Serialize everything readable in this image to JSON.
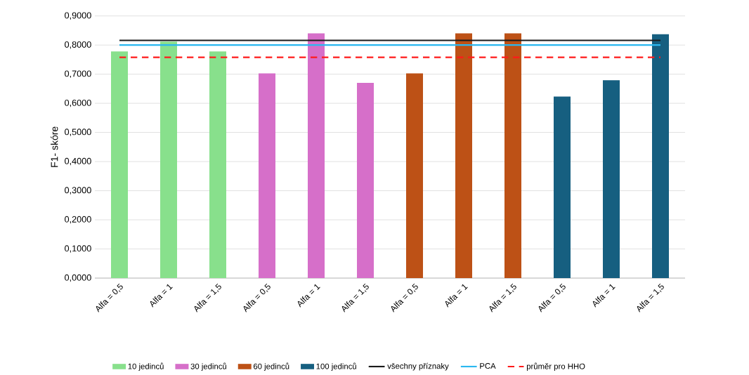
{
  "chart_data": {
    "type": "bar",
    "ylabel": "F1- skóre",
    "categories": [
      "Alfa = 0,5",
      "Alfa = 1",
      "Alfa = 1,5",
      "Alfa = 0,5",
      "Alfa = 1",
      "Alfa = 1,5",
      "Alfa = 0,5",
      "Alfa = 1",
      "Alfa = 1,5",
      "Alfa = 0,5",
      "Alfa = 1",
      "Alfa = 1,5"
    ],
    "series": [
      {
        "name": "10 jedinců",
        "color": "#88e08c",
        "values": [
          0.778,
          0.812,
          0.778,
          null,
          null,
          null,
          null,
          null,
          null,
          null,
          null,
          null
        ]
      },
      {
        "name": "30 jedinců",
        "color": "#d66fc9",
        "values": [
          null,
          null,
          null,
          0.703,
          0.84,
          0.67,
          null,
          null,
          null,
          null,
          null,
          null
        ]
      },
      {
        "name": "60 jedinců",
        "color": "#bd5116",
        "values": [
          null,
          null,
          null,
          null,
          null,
          null,
          0.703,
          0.84,
          0.84,
          null,
          null,
          null
        ]
      },
      {
        "name": "100 jedinců",
        "color": "#165f80",
        "values": [
          null,
          null,
          null,
          null,
          null,
          null,
          null,
          null,
          null,
          0.623,
          0.679,
          0.837
        ]
      },
      {
        "name": "všechny příznaky",
        "type": "line",
        "color": "#1a1a1a",
        "line_style": "solid",
        "values": [
          0.816,
          0.816,
          0.816,
          0.816,
          0.816,
          0.816,
          0.816,
          0.816,
          0.816,
          0.816,
          0.816,
          0.816
        ]
      },
      {
        "name": "PCA",
        "type": "line",
        "color": "#2ab8f0",
        "line_style": "solid",
        "values": [
          0.8,
          0.8,
          0.8,
          0.8,
          0.8,
          0.8,
          0.8,
          0.8,
          0.8,
          0.8,
          0.8,
          0.8
        ]
      },
      {
        "name": "průměr pro HHO",
        "type": "line",
        "color": "#ff1a1a",
        "line_style": "dashed",
        "values": [
          0.758,
          0.758,
          0.758,
          0.758,
          0.758,
          0.758,
          0.758,
          0.758,
          0.758,
          0.758,
          0.758,
          0.758
        ]
      }
    ],
    "ylim": [
      0,
      0.9
    ],
    "yticks": [
      {
        "value": 0,
        "label": "0,0000"
      },
      {
        "value": 0.1,
        "label": "0,1000"
      },
      {
        "value": 0.2,
        "label": "0,2000"
      },
      {
        "value": 0.3,
        "label": "0,3000"
      },
      {
        "value": 0.4,
        "label": "0,4000"
      },
      {
        "value": 0.5,
        "label": "0,5000"
      },
      {
        "value": 0.6,
        "label": "0,6000"
      },
      {
        "value": 0.7,
        "label": "0,7000"
      },
      {
        "value": 0.8,
        "label": "0,8000"
      },
      {
        "value": 0.9,
        "label": "0,9000"
      }
    ],
    "grid": "y",
    "legend": "bottom",
    "marker": "none"
  }
}
